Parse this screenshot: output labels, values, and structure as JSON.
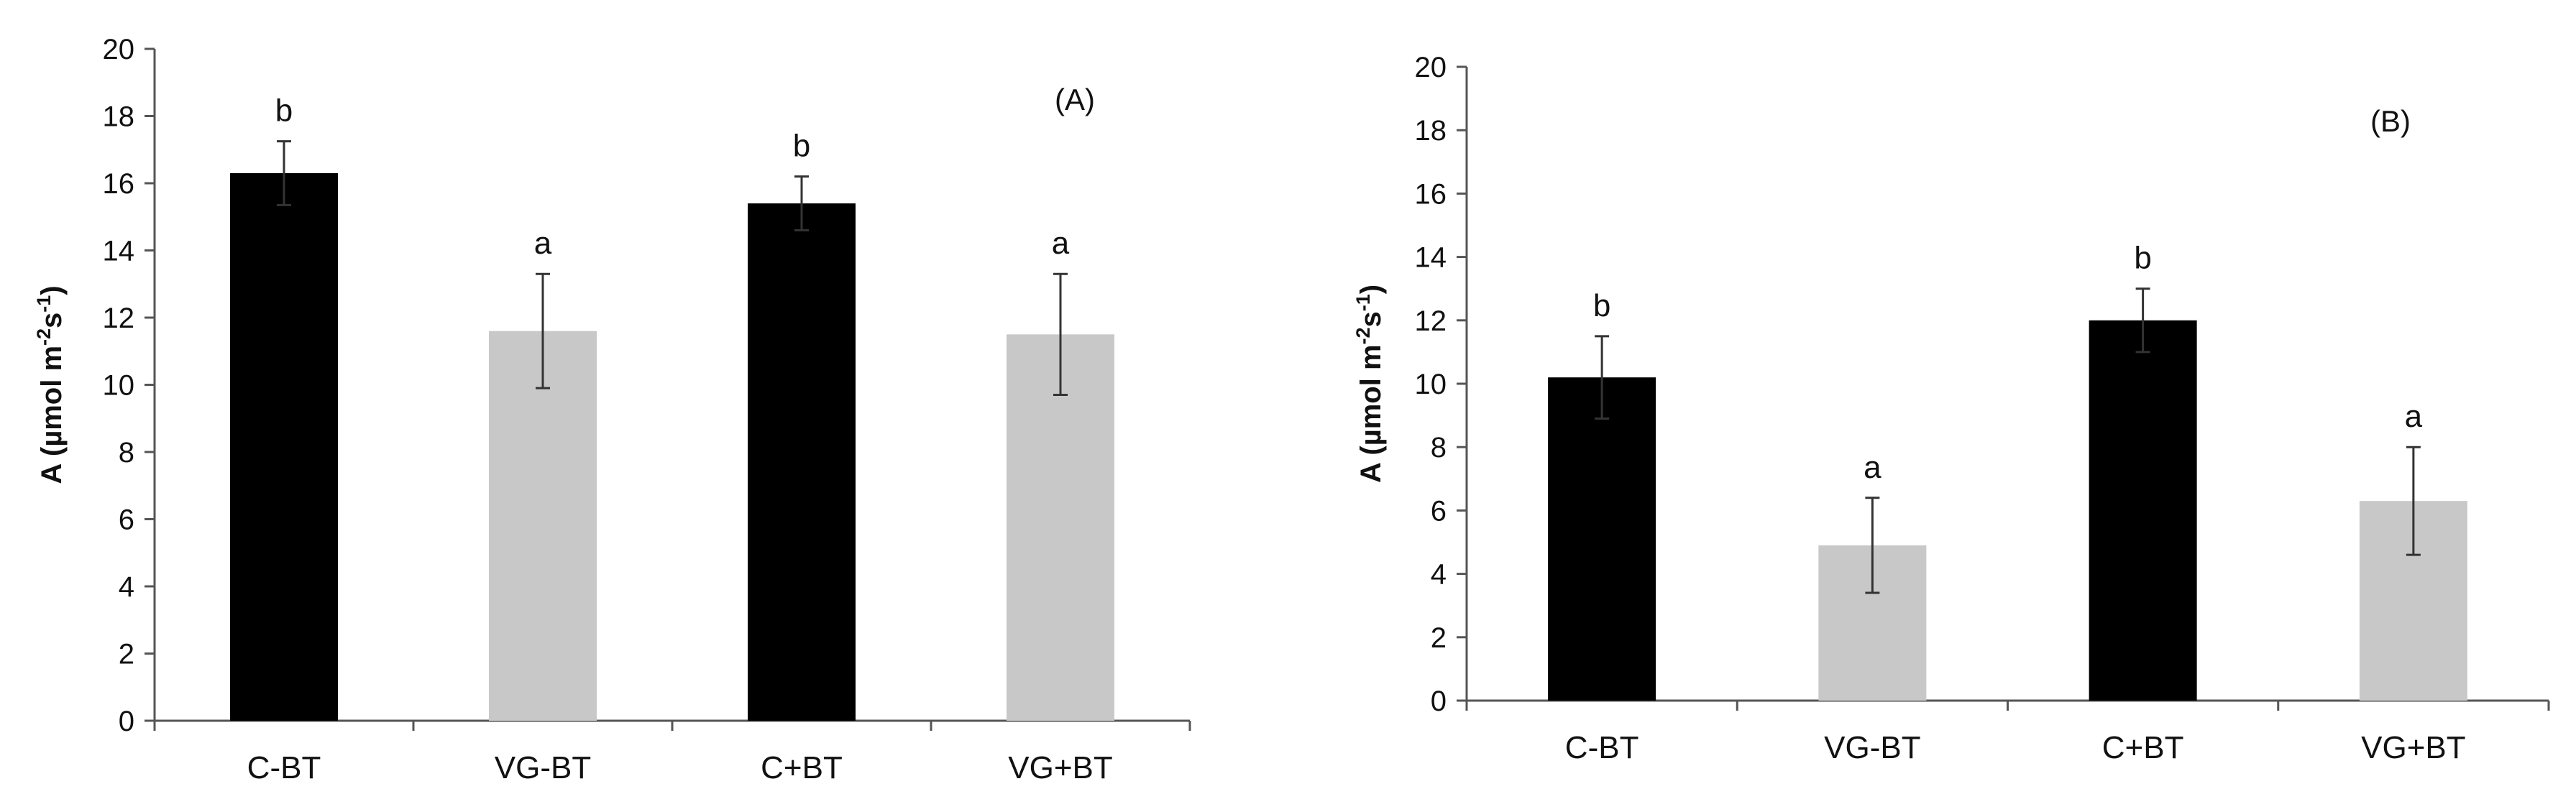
{
  "chart_data": [
    {
      "type": "bar",
      "panel_label": "(A)",
      "ylabel": "A (µmol m-2s-1)",
      "ylabel_parts": [
        "A (µmol m",
        "-2",
        "s",
        "-1",
        ")"
      ],
      "xlabel": "",
      "categories": [
        "C-BT",
        "VG-BT",
        "C+BT",
        "VG+BT"
      ],
      "values": [
        16.3,
        11.6,
        15.4,
        11.5
      ],
      "errors": [
        0.95,
        1.7,
        0.8,
        1.8
      ],
      "sig_letters": [
        "b",
        "a",
        "b",
        "a"
      ],
      "bar_colors": [
        "#000000",
        "#c8c8c8",
        "#000000",
        "#c8c8c8"
      ],
      "ylim": [
        0,
        20
      ],
      "yticks": [
        0,
        2,
        4,
        6,
        8,
        10,
        12,
        14,
        16,
        18,
        20
      ],
      "grid": false
    },
    {
      "type": "bar",
      "panel_label": "(B)",
      "ylabel": "A (µmol m-2s-1)",
      "ylabel_parts": [
        "A (µmol m",
        "-2",
        "s",
        "-1",
        ")"
      ],
      "xlabel": "",
      "categories": [
        "C-BT",
        "VG-BT",
        "C+BT",
        "VG+BT"
      ],
      "values": [
        10.2,
        4.9,
        12.0,
        6.3
      ],
      "errors": [
        1.3,
        1.5,
        1.0,
        1.7
      ],
      "sig_letters": [
        "b",
        "a",
        "b",
        "a"
      ],
      "bar_colors": [
        "#000000",
        "#c8c8c8",
        "#000000",
        "#c8c8c8"
      ],
      "ylim": [
        0,
        20
      ],
      "yticks": [
        0,
        2,
        4,
        6,
        8,
        10,
        12,
        14,
        16,
        18,
        20
      ],
      "grid": false
    }
  ]
}
